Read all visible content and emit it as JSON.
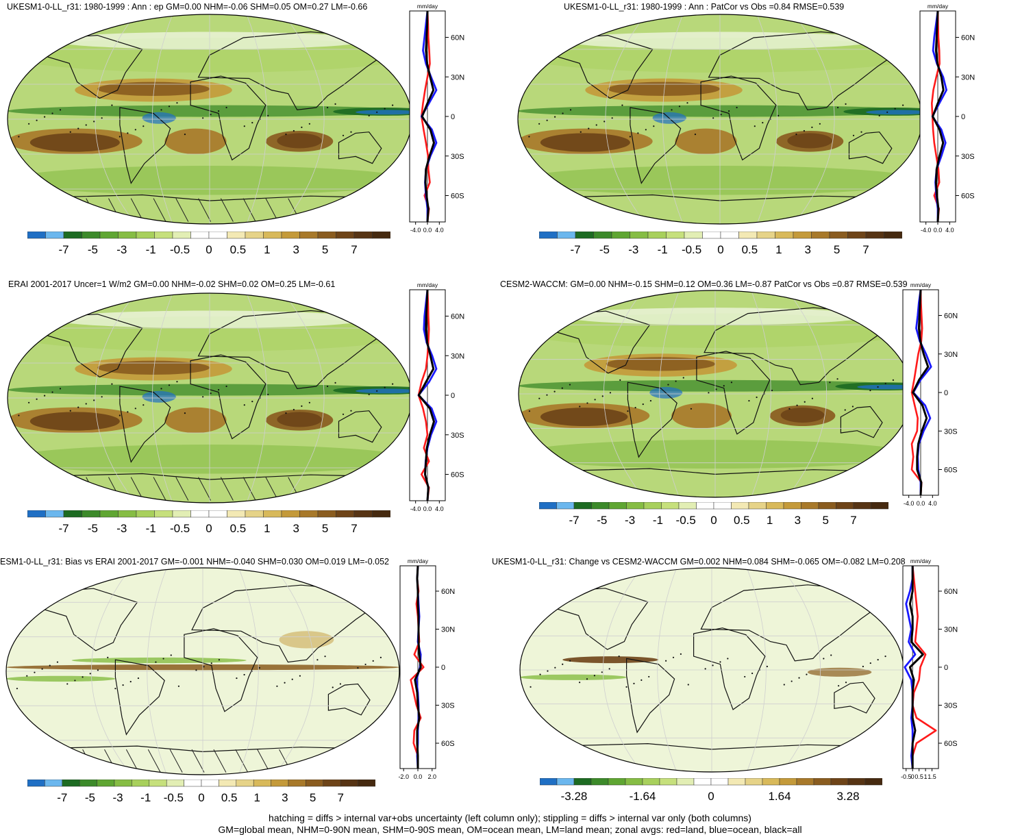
{
  "panels": [
    {
      "title": "UKESM1-0-LL_r31: 1980-1999 : Ann : ep GM=0.00 NHM=-0.06 SHM=0.05 OM=0.27 LM=-0.66",
      "zonal_unit": "mm/day",
      "lat_ticks": [
        "60N",
        "30N",
        "0",
        "30S",
        "60S"
      ],
      "x_ticks": [
        "-4.0",
        "0.0",
        "4.0"
      ],
      "colorbar_labels": [
        "-7",
        "-5",
        "-3",
        "-1",
        "-0.5",
        "0",
        "0.5",
        "1",
        "3",
        "5",
        "7"
      ],
      "hatching": true
    },
    {
      "title": "UKESM1-0-LL_r31: 1980-1999 : Ann : PatCor vs Obs =0.84 RMSE=0.539",
      "zonal_unit": "mm/day",
      "lat_ticks": [
        "60N",
        "30N",
        "0",
        "30S",
        "60S"
      ],
      "x_ticks": [
        "-4.0",
        "0.0",
        "4.0"
      ],
      "colorbar_labels": [
        "-7",
        "-5",
        "-3",
        "-1",
        "-0.5",
        "0",
        "0.5",
        "1",
        "3",
        "5",
        "7"
      ],
      "hatching": false
    },
    {
      "title": "ERAI 2001-2017 Uncer=1 W/m2 GM=0.00 NHM=-0.02 SHM=0.02 OM=0.25 LM=-0.61",
      "zonal_unit": "mm/day",
      "lat_ticks": [
        "60N",
        "30N",
        "0",
        "30S",
        "60S"
      ],
      "x_ticks": [
        "-4.0",
        "0.0",
        "4.0"
      ],
      "colorbar_labels": [
        "-7",
        "-5",
        "-3",
        "-1",
        "-0.5",
        "0",
        "0.5",
        "1",
        "3",
        "5",
        "7"
      ],
      "hatching": true
    },
    {
      "title": "CESM2-WACCM: GM=0.00 NHM=-0.15 SHM=0.12 OM=0.36 LM=-0.87 PatCor vs Obs =0.87 RMSE=0.539",
      "zonal_unit": "mm/day",
      "lat_ticks": [
        "60N",
        "30N",
        "0",
        "30S",
        "60S"
      ],
      "x_ticks": [
        "-4.0",
        "0.0",
        "4.0"
      ],
      "colorbar_labels": [
        "-7",
        "-5",
        "-3",
        "-1",
        "-0.5",
        "0",
        "0.5",
        "1",
        "3",
        "5",
        "7"
      ],
      "hatching": false
    },
    {
      "title": "ESM1-0-LL_r31: Bias vs ERAI 2001-2017 GM=-0.001 NHM=-0.040 SHM=0.030 OM=0.019 LM=-0.052",
      "zonal_unit": "mm/day",
      "lat_ticks": [
        "60N",
        "30N",
        "0",
        "30S",
        "60S"
      ],
      "x_ticks": [
        "-2.0",
        "0.0",
        "2.0"
      ],
      "colorbar_labels": [
        "-7",
        "-5",
        "-3",
        "-1",
        "-0.5",
        "0",
        "0.5",
        "1",
        "3",
        "5",
        "7"
      ],
      "hatching": true
    },
    {
      "title": "UKESM1-0-LL_r31: Change vs CESM2-WACCM GM=0.002 NHM=0.084 SHM=-0.065 OM=-0.082 LM=0.208",
      "zonal_unit": "mm/day",
      "lat_ticks": [
        "60N",
        "30N",
        "0",
        "30S",
        "60S"
      ],
      "x_ticks": [
        "-0.5",
        "0",
        "0.5",
        "1",
        "1.5"
      ],
      "colorbar_labels": [
        "-3.28",
        "-1.64",
        "0",
        "1.64",
        "3.28"
      ],
      "hatching": false
    }
  ],
  "footer": {
    "line1": "hatching = diffs > internal var+obs uncertainty (left column only); stippling = diffs > internal var only (both columns)",
    "line2": "GM=global mean, NHM=0-90N mean, SHM=0-90S mean, OM=ocean mean, LM=land mean; zonal avgs: red=land, blue=ocean, black=all"
  },
  "colors": {
    "negative": [
      "#1f6fc4",
      "#6bb7ee",
      "#1d6b22",
      "#3c8a2a",
      "#5fa632",
      "#86bd44",
      "#a8d05c",
      "#c6e07c",
      "#e2eeb4"
    ],
    "neutral": "#ffffff",
    "positive": [
      "#f3e9b4",
      "#e6d388",
      "#d8b95a",
      "#c49a3a",
      "#a8792a",
      "#8a5c1f",
      "#6e4418",
      "#573414",
      "#462a10"
    ],
    "zonal_land": "#ff1a1a",
    "zonal_ocean": "#1a1aff",
    "zonal_all": "#000000"
  },
  "chart_data": [
    {
      "type": "heatmap",
      "title": "UKESM1-0-LL_r31: 1980-1999 : Ann : ep GM=0.00 NHM=-0.06 SHM=0.05 OM=0.27 LM=-0.66",
      "xlabel": "",
      "ylabel": "",
      "zonal": {
        "xlim": [
          -6,
          6
        ],
        "ylim": [
          -80,
          80
        ],
        "unit": "mm/day",
        "lat": [
          80,
          70,
          60,
          50,
          40,
          30,
          20,
          10,
          0,
          -10,
          -20,
          -30,
          -40,
          -50,
          -60,
          -70,
          -80
        ],
        "land": [
          0,
          0.2,
          0.3,
          0.6,
          0.8,
          0.0,
          -0.8,
          -1.5,
          -2.0,
          -1.3,
          -0.5,
          0.2,
          0.3,
          0.8,
          -1.0,
          0.5,
          0
        ],
        "ocean": [
          0,
          -0.5,
          -1.0,
          -1.5,
          -0.5,
          1.2,
          3.0,
          0.5,
          -2.0,
          1.5,
          3.0,
          1.0,
          -0.5,
          -0.8,
          -0.5,
          0,
          0
        ],
        "all": [
          0,
          -0.1,
          -0.3,
          -0.5,
          -0.1,
          0.9,
          2.0,
          0.0,
          -1.8,
          1.0,
          2.2,
          0.7,
          -0.5,
          -0.7,
          -0.3,
          0.3,
          0
        ]
      }
    },
    {
      "type": "heatmap",
      "title": "UKESM1-0-LL_r31: 1980-1999 : Ann : PatCor vs Obs =0.84 RMSE=0.539",
      "xlabel": "",
      "ylabel": "",
      "zonal": {
        "xlim": [
          -6,
          6
        ],
        "ylim": [
          -80,
          80
        ],
        "unit": "mm/day",
        "lat": [
          80,
          70,
          60,
          50,
          40,
          30,
          20,
          10,
          0,
          -10,
          -20,
          -30,
          -40,
          -50,
          -60,
          -70,
          -80
        ],
        "land": [
          0,
          0.1,
          0.2,
          0.5,
          0.6,
          -0.5,
          -1.5,
          -2.0,
          -1.8,
          -1.6,
          -1.2,
          -0.5,
          0.2,
          0.5,
          -1.2,
          0.4,
          0
        ],
        "ocean": [
          0,
          -0.6,
          -1.2,
          -1.6,
          -0.3,
          1.8,
          2.9,
          0.5,
          -1.8,
          1.2,
          2.6,
          1.2,
          -0.4,
          -0.8,
          -0.5,
          0,
          0
        ],
        "all": [
          0,
          -0.2,
          -0.4,
          -0.6,
          -0.1,
          1.2,
          1.9,
          0.0,
          -1.7,
          0.6,
          1.8,
          0.6,
          -0.4,
          -0.6,
          -0.3,
          0.2,
          0
        ]
      }
    },
    {
      "type": "heatmap",
      "title": "ERAI 2001-2017 Uncer=1 W/m2 GM=0.00 NHM=-0.02 SHM=0.02 OM=0.25 LM=-0.61",
      "xlabel": "",
      "ylabel": "",
      "zonal": {
        "xlim": [
          -6,
          6
        ],
        "ylim": [
          -80,
          80
        ],
        "unit": "mm/day",
        "lat": [
          80,
          70,
          60,
          50,
          40,
          30,
          20,
          10,
          0,
          -10,
          -20,
          -30,
          -40,
          -50,
          -60,
          -70,
          -80
        ],
        "land": [
          0,
          0.2,
          0.3,
          0.5,
          0.3,
          0.0,
          -0.5,
          -2.0,
          -3.0,
          -1.5,
          -0.5,
          0.0,
          -1.2,
          0.5,
          -2.0,
          0.5,
          0
        ],
        "ocean": [
          0,
          -0.5,
          -1.0,
          -1.2,
          -0.3,
          1.6,
          3.0,
          0.5,
          -3.0,
          1.4,
          3.0,
          1.2,
          0.0,
          -0.6,
          -0.8,
          0.3,
          0
        ],
        "all": [
          0,
          -0.2,
          -0.4,
          -0.5,
          -0.1,
          1.0,
          2.0,
          -0.5,
          -2.9,
          0.8,
          2.2,
          0.8,
          -0.2,
          -0.5,
          -0.8,
          0.3,
          0
        ]
      }
    },
    {
      "type": "heatmap",
      "title": "CESM2-WACCM: GM=0.00 NHM=-0.15 SHM=0.12 OM=0.36 LM=-0.87 PatCor vs Obs =0.87 RMSE=0.539",
      "xlabel": "",
      "ylabel": "",
      "zonal": {
        "xlim": [
          -6,
          6
        ],
        "ylim": [
          -80,
          80
        ],
        "unit": "mm/day",
        "lat": [
          80,
          70,
          60,
          50,
          40,
          30,
          20,
          10,
          0,
          -10,
          -20,
          -30,
          -40,
          -50,
          -60,
          -70,
          -80
        ],
        "land": [
          0,
          0.1,
          0.3,
          0.5,
          0.2,
          -0.8,
          -1.5,
          -2.2,
          -3.0,
          -2.0,
          -1.0,
          -1.2,
          -3.0,
          -2.5,
          -3.0,
          0.3,
          0
        ],
        "ocean": [
          0,
          -0.6,
          -1.0,
          -1.5,
          -0.3,
          1.8,
          3.5,
          0.0,
          -2.5,
          1.5,
          3.2,
          1.0,
          -0.6,
          -1.0,
          -0.8,
          0,
          0
        ],
        "all": [
          0,
          -0.2,
          -0.4,
          -0.6,
          -0.1,
          1.0,
          2.5,
          -0.5,
          -2.6,
          0.6,
          2.0,
          0.4,
          -0.8,
          -1.2,
          -1.2,
          0.2,
          0
        ]
      }
    },
    {
      "type": "heatmap",
      "title": "ESM1-0-LL_r31: Bias vs ERAI 2001-2017 GM=-0.001 NHM=-0.040 SHM=0.030 OM=0.019 LM=-0.052",
      "xlabel": "",
      "ylabel": "",
      "zonal": {
        "xlim": [
          -2.5,
          2.5
        ],
        "ylim": [
          -80,
          80
        ],
        "unit": "mm/day",
        "lat": [
          80,
          70,
          60,
          50,
          40,
          30,
          20,
          10,
          0,
          -10,
          -20,
          -30,
          -40,
          -50,
          -60,
          -70,
          -80
        ],
        "land": [
          0,
          -0.1,
          0.1,
          -0.2,
          0.0,
          0.1,
          0.2,
          -0.5,
          0.8,
          -1.0,
          -0.6,
          -0.2,
          0.4,
          -0.5,
          -0.6,
          0.0,
          0
        ],
        "ocean": [
          0,
          -0.1,
          0.0,
          0.1,
          0.2,
          0.1,
          0.0,
          0.4,
          0.3,
          -0.2,
          0.0,
          0.1,
          0.1,
          0.0,
          0.0,
          -0.1,
          0
        ],
        "all": [
          0,
          -0.1,
          0.0,
          0.0,
          0.1,
          0.1,
          0.1,
          0.2,
          0.4,
          -0.4,
          -0.1,
          0.0,
          0.2,
          -0.1,
          -0.1,
          0.0,
          0
        ]
      }
    },
    {
      "type": "heatmap",
      "title": "UKESM1-0-LL_r31: Change vs CESM2-WACCM GM=0.002 NHM=0.084 SHM=-0.065 OM=-0.082 LM=0.208",
      "xlabel": "",
      "ylabel": "",
      "zonal": {
        "xlim": [
          -0.75,
          2.0
        ],
        "ylim": [
          -80,
          80
        ],
        "unit": "mm/day",
        "lat": [
          80,
          70,
          60,
          50,
          40,
          30,
          20,
          10,
          0,
          -10,
          -20,
          -30,
          -40,
          -50,
          -60,
          -70,
          -80
        ],
        "land": [
          0,
          0.1,
          0.2,
          0.3,
          0.4,
          0.3,
          0.2,
          1.0,
          0.6,
          0.5,
          0.1,
          0.0,
          0.3,
          1.8,
          0.3,
          0.0,
          0
        ],
        "ocean": [
          0,
          0.0,
          -0.2,
          -0.5,
          -0.3,
          -0.1,
          -0.3,
          0.2,
          -0.6,
          -0.1,
          0.0,
          0.0,
          -0.1,
          0.0,
          0.0,
          -0.1,
          0
        ],
        "all": [
          0,
          0.0,
          0.0,
          -0.2,
          0.0,
          0.0,
          -0.1,
          0.8,
          -0.2,
          0.1,
          0.0,
          0.0,
          0.0,
          0.2,
          0.0,
          0.0,
          0
        ]
      }
    }
  ]
}
